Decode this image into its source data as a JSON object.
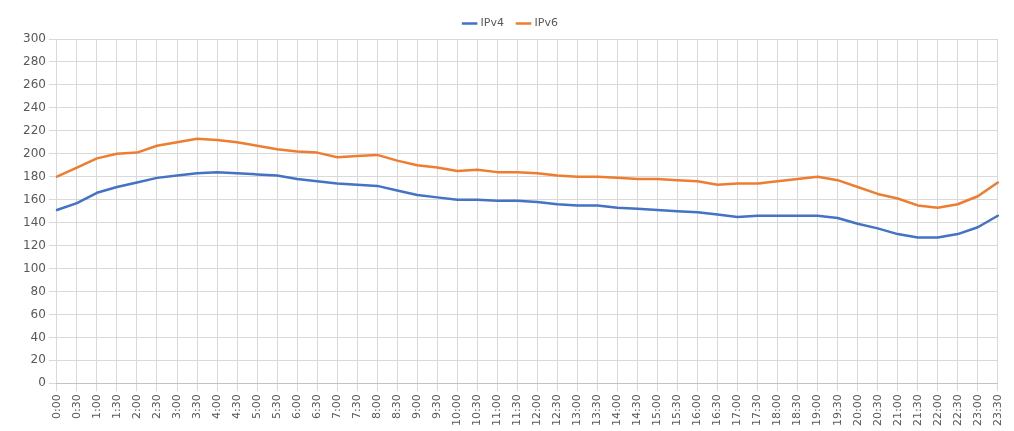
{
  "chart_data": {
    "type": "line",
    "categories": [
      "0:00",
      "0:30",
      "1:00",
      "1:30",
      "2:00",
      "2:30",
      "3:00",
      "3:30",
      "4:00",
      "4:30",
      "5:00",
      "5:30",
      "6:00",
      "6:30",
      "7:00",
      "7:30",
      "8:00",
      "8:30",
      "9:00",
      "9:30",
      "10:00",
      "10:30",
      "11:00",
      "11:30",
      "12:00",
      "12:30",
      "13:00",
      "13:30",
      "14:00",
      "14:30",
      "15:00",
      "15:30",
      "16:00",
      "16:30",
      "17:00",
      "17:30",
      "18:00",
      "18:30",
      "19:00",
      "19:30",
      "20:00",
      "20:30",
      "21:00",
      "21:30",
      "22:00",
      "22:30",
      "23:00",
      "23:30"
    ],
    "series": [
      {
        "name": "IPv4",
        "color": "#4472c4",
        "values": [
          151,
          157,
          166,
          171,
          175,
          179,
          181,
          183,
          184,
          183,
          182,
          181,
          178,
          176,
          174,
          173,
          172,
          168,
          164,
          162,
          160,
          160,
          159,
          159,
          158,
          156,
          155,
          155,
          153,
          152,
          151,
          150,
          149,
          147,
          145,
          146,
          146,
          146,
          146,
          144,
          139,
          135,
          130,
          127,
          127,
          130,
          136,
          146
        ]
      },
      {
        "name": "IPv6",
        "color": "#ed7d31",
        "values": [
          180,
          188,
          196,
          200,
          201,
          207,
          210,
          213,
          212,
          210,
          207,
          204,
          202,
          201,
          197,
          198,
          199,
          194,
          190,
          188,
          185,
          186,
          184,
          184,
          183,
          181,
          180,
          180,
          179,
          178,
          178,
          177,
          176,
          173,
          174,
          174,
          176,
          178,
          180,
          177,
          171,
          165,
          161,
          155,
          153,
          156,
          163,
          175
        ]
      }
    ],
    "ylim": [
      0,
      300
    ],
    "yticks": [
      0,
      20,
      40,
      60,
      80,
      100,
      120,
      140,
      160,
      180,
      200,
      220,
      240,
      260,
      280,
      300
    ],
    "grid": true,
    "legend": "top",
    "marker": "none",
    "line_style": "solid"
  }
}
